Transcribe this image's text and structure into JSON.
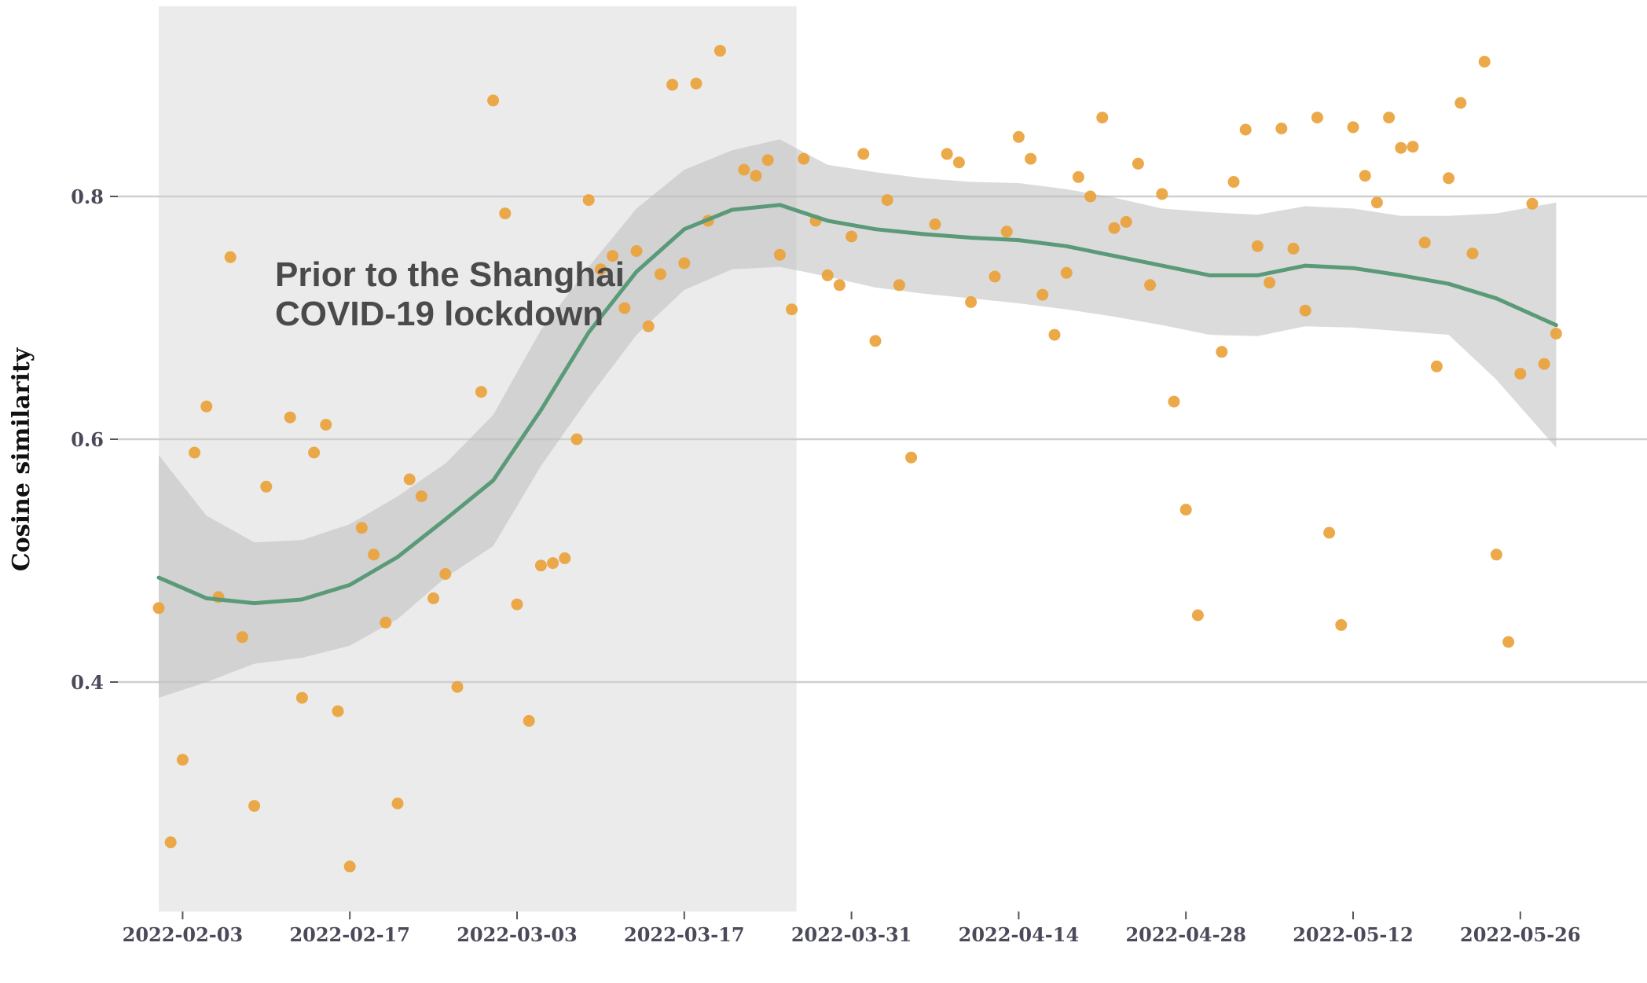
{
  "chart_data": {
    "type": "scatter",
    "title": "",
    "xlabel": "",
    "ylabel": "Cosine similarity",
    "x_ticks": [
      "2022-02-03",
      "2022-02-17",
      "2022-03-03",
      "2022-03-17",
      "2022-03-31",
      "2022-04-14",
      "2022-04-28",
      "2022-05-12",
      "2022-05-26"
    ],
    "y_ticks": [
      "0.4",
      "0.6",
      "0.8"
    ],
    "xlim": [
      "2022-02-01",
      "2022-06-01"
    ],
    "ylim": [
      0.23,
      0.92
    ],
    "grid": "horizontal major lines",
    "shaded_region": {
      "start": "2022-02-01",
      "end": "2022-03-26",
      "color": "#ebebeb"
    },
    "annotation": [
      "Prior to the Shanghai",
      "COVID-19 lockdown"
    ],
    "colors": {
      "points": "#eaa23a",
      "smooth": "#5a9a78",
      "confidence_band": "#bdbdbd"
    },
    "points": [
      {
        "x": "2022-02-01",
        "y": 0.461
      },
      {
        "x": "2022-02-02",
        "y": 0.268
      },
      {
        "x": "2022-02-03",
        "y": 0.336
      },
      {
        "x": "2022-02-04",
        "y": 0.589
      },
      {
        "x": "2022-02-05",
        "y": 0.627
      },
      {
        "x": "2022-02-06",
        "y": 0.47
      },
      {
        "x": "2022-02-07",
        "y": 0.75
      },
      {
        "x": "2022-02-08",
        "y": 0.437
      },
      {
        "x": "2022-02-09",
        "y": 0.298
      },
      {
        "x": "2022-02-10",
        "y": 0.561
      },
      {
        "x": "2022-02-12",
        "y": 0.618
      },
      {
        "x": "2022-02-13",
        "y": 0.387
      },
      {
        "x": "2022-02-14",
        "y": 0.589
      },
      {
        "x": "2022-02-15",
        "y": 0.612
      },
      {
        "x": "2022-02-16",
        "y": 0.376
      },
      {
        "x": "2022-02-17",
        "y": 0.248
      },
      {
        "x": "2022-02-18",
        "y": 0.527
      },
      {
        "x": "2022-02-19",
        "y": 0.505
      },
      {
        "x": "2022-02-20",
        "y": 0.449
      },
      {
        "x": "2022-02-21",
        "y": 0.3
      },
      {
        "x": "2022-02-22",
        "y": 0.567
      },
      {
        "x": "2022-02-23",
        "y": 0.553
      },
      {
        "x": "2022-02-24",
        "y": 0.469
      },
      {
        "x": "2022-02-25",
        "y": 0.489
      },
      {
        "x": "2022-02-26",
        "y": 0.396
      },
      {
        "x": "2022-02-28",
        "y": 0.639
      },
      {
        "x": "2022-03-01",
        "y": 0.879
      },
      {
        "x": "2022-03-02",
        "y": 0.786
      },
      {
        "x": "2022-03-03",
        "y": 0.464
      },
      {
        "x": "2022-03-04",
        "y": 0.368
      },
      {
        "x": "2022-03-05",
        "y": 0.496
      },
      {
        "x": "2022-03-06",
        "y": 0.498
      },
      {
        "x": "2022-03-07",
        "y": 0.502
      },
      {
        "x": "2022-03-08",
        "y": 0.6
      },
      {
        "x": "2022-03-09",
        "y": 0.797
      },
      {
        "x": "2022-03-10",
        "y": 0.74
      },
      {
        "x": "2022-03-11",
        "y": 0.751
      },
      {
        "x": "2022-03-12",
        "y": 0.708
      },
      {
        "x": "2022-03-13",
        "y": 0.755
      },
      {
        "x": "2022-03-14",
        "y": 0.693
      },
      {
        "x": "2022-03-15",
        "y": 0.736
      },
      {
        "x": "2022-03-16",
        "y": 0.892
      },
      {
        "x": "2022-03-17",
        "y": 0.745
      },
      {
        "x": "2022-03-18",
        "y": 0.893
      },
      {
        "x": "2022-03-19",
        "y": 0.78
      },
      {
        "x": "2022-03-20",
        "y": 0.92
      },
      {
        "x": "2022-03-22",
        "y": 0.822
      },
      {
        "x": "2022-03-23",
        "y": 0.817
      },
      {
        "x": "2022-03-24",
        "y": 0.83
      },
      {
        "x": "2022-03-25",
        "y": 0.752
      },
      {
        "x": "2022-03-26",
        "y": 0.707
      },
      {
        "x": "2022-03-27",
        "y": 0.831
      },
      {
        "x": "2022-03-28",
        "y": 0.78
      },
      {
        "x": "2022-03-29",
        "y": 0.735
      },
      {
        "x": "2022-03-30",
        "y": 0.727
      },
      {
        "x": "2022-03-31",
        "y": 0.767
      },
      {
        "x": "2022-04-01",
        "y": 0.835
      },
      {
        "x": "2022-04-02",
        "y": 0.681
      },
      {
        "x": "2022-04-03",
        "y": 0.797
      },
      {
        "x": "2022-04-04",
        "y": 0.727
      },
      {
        "x": "2022-04-05",
        "y": 0.585
      },
      {
        "x": "2022-04-07",
        "y": 0.777
      },
      {
        "x": "2022-04-08",
        "y": 0.835
      },
      {
        "x": "2022-04-09",
        "y": 0.828
      },
      {
        "x": "2022-04-10",
        "y": 0.713
      },
      {
        "x": "2022-04-12",
        "y": 0.734
      },
      {
        "x": "2022-04-13",
        "y": 0.771
      },
      {
        "x": "2022-04-14",
        "y": 0.849
      },
      {
        "x": "2022-04-15",
        "y": 0.831
      },
      {
        "x": "2022-04-16",
        "y": 0.719
      },
      {
        "x": "2022-04-17",
        "y": 0.686
      },
      {
        "x": "2022-04-18",
        "y": 0.737
      },
      {
        "x": "2022-04-19",
        "y": 0.816
      },
      {
        "x": "2022-04-20",
        "y": 0.8
      },
      {
        "x": "2022-04-21",
        "y": 0.865
      },
      {
        "x": "2022-04-22",
        "y": 0.774
      },
      {
        "x": "2022-04-23",
        "y": 0.779
      },
      {
        "x": "2022-04-24",
        "y": 0.827
      },
      {
        "x": "2022-04-25",
        "y": 0.727
      },
      {
        "x": "2022-04-26",
        "y": 0.802
      },
      {
        "x": "2022-04-27",
        "y": 0.631
      },
      {
        "x": "2022-04-28",
        "y": 0.542
      },
      {
        "x": "2022-04-29",
        "y": 0.455
      },
      {
        "x": "2022-05-01",
        "y": 0.672
      },
      {
        "x": "2022-05-02",
        "y": 0.812
      },
      {
        "x": "2022-05-03",
        "y": 0.855
      },
      {
        "x": "2022-05-04",
        "y": 0.759
      },
      {
        "x": "2022-05-05",
        "y": 0.729
      },
      {
        "x": "2022-05-06",
        "y": 0.856
      },
      {
        "x": "2022-05-07",
        "y": 0.757
      },
      {
        "x": "2022-05-08",
        "y": 0.706
      },
      {
        "x": "2022-05-09",
        "y": 0.865
      },
      {
        "x": "2022-05-10",
        "y": 0.523
      },
      {
        "x": "2022-05-11",
        "y": 0.447
      },
      {
        "x": "2022-05-12",
        "y": 0.857
      },
      {
        "x": "2022-05-13",
        "y": 0.817
      },
      {
        "x": "2022-05-14",
        "y": 0.795
      },
      {
        "x": "2022-05-15",
        "y": 0.865
      },
      {
        "x": "2022-05-16",
        "y": 0.84
      },
      {
        "x": "2022-05-17",
        "y": 0.841
      },
      {
        "x": "2022-05-18",
        "y": 0.762
      },
      {
        "x": "2022-05-19",
        "y": 0.66
      },
      {
        "x": "2022-05-20",
        "y": 0.815
      },
      {
        "x": "2022-05-21",
        "y": 0.877
      },
      {
        "x": "2022-05-22",
        "y": 0.753
      },
      {
        "x": "2022-05-23",
        "y": 0.911
      },
      {
        "x": "2022-05-24",
        "y": 0.505
      },
      {
        "x": "2022-05-25",
        "y": 0.433
      },
      {
        "x": "2022-05-26",
        "y": 0.654
      },
      {
        "x": "2022-05-27",
        "y": 0.794
      },
      {
        "x": "2022-05-28",
        "y": 0.662
      },
      {
        "x": "2022-05-29",
        "y": 0.687
      }
    ],
    "smooth": {
      "x": [
        "2022-02-01",
        "2022-02-05",
        "2022-02-09",
        "2022-02-13",
        "2022-02-17",
        "2022-02-21",
        "2022-02-25",
        "2022-03-01",
        "2022-03-05",
        "2022-03-09",
        "2022-03-13",
        "2022-03-17",
        "2022-03-21",
        "2022-03-25",
        "2022-03-29",
        "2022-04-02",
        "2022-04-06",
        "2022-04-10",
        "2022-04-14",
        "2022-04-18",
        "2022-04-22",
        "2022-04-26",
        "2022-04-30",
        "2022-05-04",
        "2022-05-08",
        "2022-05-12",
        "2022-05-16",
        "2022-05-20",
        "2022-05-24",
        "2022-05-29"
      ],
      "fit": [
        0.486,
        0.469,
        0.465,
        0.468,
        0.48,
        0.503,
        0.534,
        0.566,
        0.624,
        0.688,
        0.738,
        0.773,
        0.789,
        0.793,
        0.78,
        0.773,
        0.769,
        0.766,
        0.764,
        0.759,
        0.751,
        0.743,
        0.735,
        0.735,
        0.743,
        0.741,
        0.735,
        0.728,
        0.716,
        0.694
      ],
      "upper": [
        0.587,
        0.537,
        0.515,
        0.517,
        0.53,
        0.553,
        0.58,
        0.62,
        0.69,
        0.742,
        0.79,
        0.822,
        0.838,
        0.847,
        0.826,
        0.82,
        0.815,
        0.812,
        0.811,
        0.806,
        0.799,
        0.79,
        0.787,
        0.785,
        0.792,
        0.79,
        0.784,
        0.784,
        0.786,
        0.795
      ],
      "lower": [
        0.387,
        0.4,
        0.415,
        0.42,
        0.43,
        0.452,
        0.486,
        0.512,
        0.578,
        0.634,
        0.686,
        0.723,
        0.74,
        0.742,
        0.734,
        0.725,
        0.72,
        0.716,
        0.712,
        0.707,
        0.701,
        0.694,
        0.686,
        0.685,
        0.693,
        0.692,
        0.689,
        0.686,
        0.649,
        0.593
      ]
    }
  }
}
